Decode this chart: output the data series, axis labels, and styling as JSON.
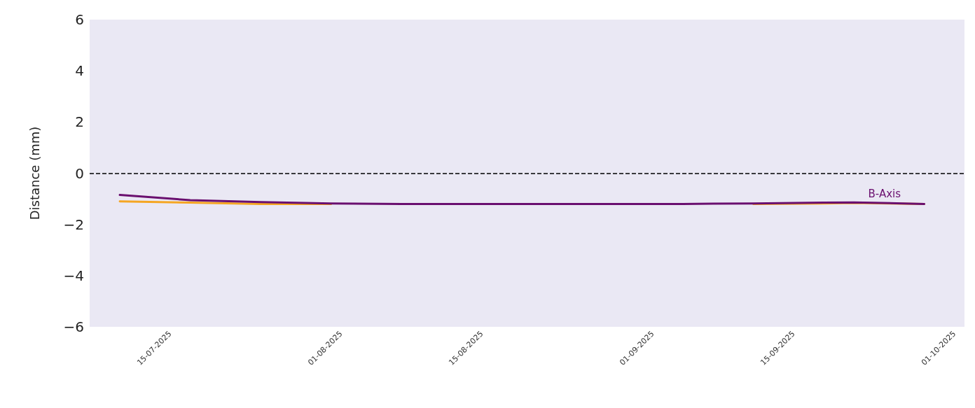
{
  "chart_data": {
    "type": "line",
    "ylabel": "Distance (mm)",
    "xlim": [
      "2025-07-07",
      "2025-10-02"
    ],
    "xticks": [
      {
        "value": "2025-07-15",
        "label": "15-07-2025"
      },
      {
        "value": "2025-08-01",
        "label": "01-08-2025"
      },
      {
        "value": "2025-08-15",
        "label": "15-08-2025"
      },
      {
        "value": "2025-09-01",
        "label": "01-09-2025"
      },
      {
        "value": "2025-09-15",
        "label": "15-09-2025"
      },
      {
        "value": "2025-10-01",
        "label": "01-10-2025"
      }
    ],
    "ylim": [
      -6,
      6
    ],
    "yticks": [
      -6,
      -4,
      -2,
      0,
      2,
      4,
      6
    ],
    "x": [
      "2025-07-10",
      "2025-07-17",
      "2025-07-24",
      "2025-07-31",
      "2025-08-07",
      "2025-08-14",
      "2025-08-21",
      "2025-08-28",
      "2025-09-04",
      "2025-09-11",
      "2025-09-18",
      "2025-09-21",
      "2025-09-28"
    ],
    "series": [
      {
        "color": "#f5a623",
        "values": [
          -1.1,
          -1.15,
          -1.2,
          -1.2,
          null,
          null,
          null,
          null,
          null,
          -1.2,
          -1.18,
          -1.16,
          -1.2
        ]
      },
      {
        "name": "B-Axis",
        "color": "#6a0f6f",
        "values": [
          -0.85,
          -1.05,
          -1.13,
          -1.18,
          -1.2,
          -1.2,
          -1.2,
          -1.2,
          -1.2,
          -1.18,
          -1.15,
          -1.14,
          -1.2
        ]
      }
    ],
    "ref_lines": [
      {
        "axis": "y",
        "value": 0,
        "color": "#000000",
        "line_style": "dashed"
      }
    ],
    "grid": false,
    "legend": false,
    "marker": "none",
    "line_style": "solid"
  }
}
